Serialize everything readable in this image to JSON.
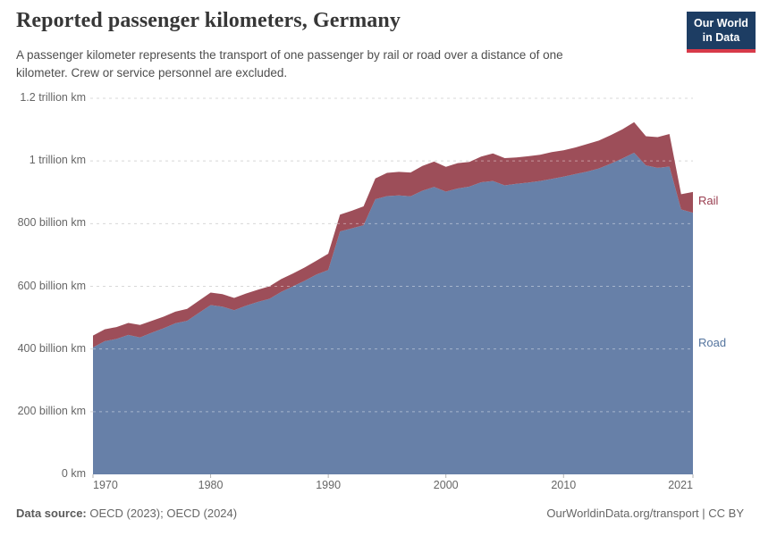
{
  "header": {
    "title": "Reported passenger kilometers, Germany",
    "subtitle_line1": "A passenger kilometer represents the transport of one passenger by rail or road over a distance of one",
    "subtitle_line2": "kilometer. Crew or service personnel are excluded."
  },
  "logo": {
    "line1": "Our World",
    "line2": "in Data",
    "bg_color": "#1d3d63",
    "accent_color": "#d73a49"
  },
  "footer": {
    "datasource_label": "Data source:",
    "datasource_value": " OECD (2023); OECD (2024)",
    "credit": "OurWorldinData.org/transport | CC BY"
  },
  "chart_data": {
    "type": "area",
    "stacked": true,
    "title": "Reported passenger kilometers, Germany",
    "ylabel": "",
    "xlabel": "",
    "units": "billion passenger-km",
    "grid": "horizontal dashed",
    "legend_position": "right edge labels",
    "ylim": [
      0,
      1200
    ],
    "x": [
      1970,
      1971,
      1972,
      1973,
      1974,
      1975,
      1976,
      1977,
      1978,
      1979,
      1980,
      1981,
      1982,
      1983,
      1984,
      1985,
      1986,
      1987,
      1988,
      1989,
      1990,
      1991,
      1992,
      1993,
      1994,
      1995,
      1996,
      1997,
      1998,
      1999,
      2000,
      2001,
      2002,
      2003,
      2004,
      2005,
      2006,
      2007,
      2008,
      2009,
      2010,
      2011,
      2012,
      2013,
      2014,
      2015,
      2016,
      2017,
      2018,
      2019,
      2020,
      2021
    ],
    "series": [
      {
        "name": "Road",
        "color": "#6780a8",
        "label_color": "#54749e",
        "values": [
          405,
          425,
          432,
          445,
          437,
          452,
          466,
          482,
          490,
          515,
          540,
          535,
          524,
          538,
          550,
          560,
          582,
          600,
          618,
          638,
          652,
          775,
          785,
          795,
          878,
          888,
          890,
          887,
          905,
          917,
          902,
          912,
          918,
          932,
          936,
          922,
          927,
          931,
          936,
          943,
          950,
          958,
          966,
          976,
          991,
          1008,
          1026,
          986,
          978,
          982,
          845,
          835
        ]
      },
      {
        "name": "Rail",
        "color": "#9d4e59",
        "label_color": "#993d4f",
        "values": [
          38,
          38,
          38,
          38,
          40,
          38,
          37,
          37,
          38,
          39,
          40,
          40,
          39,
          39,
          39,
          40,
          41,
          41,
          42,
          44,
          52,
          54,
          56,
          60,
          66,
          74,
          75,
          76,
          79,
          81,
          79,
          81,
          79,
          82,
          88,
          87,
          84,
          84,
          84,
          85,
          84,
          85,
          88,
          89,
          91,
          93,
          98,
          93,
          98,
          104,
          49,
          66
        ]
      }
    ],
    "yticks": [
      {
        "value": 1200,
        "label": "1.2 trillion km"
      },
      {
        "value": 1000,
        "label": "1 trillion km"
      },
      {
        "value": 800,
        "label": "800 billion km"
      },
      {
        "value": 600,
        "label": "600 billion km"
      },
      {
        "value": 400,
        "label": "400 billion km"
      },
      {
        "value": 200,
        "label": "200 billion km"
      },
      {
        "value": 0,
        "label": "0 km"
      }
    ],
    "xticks": [
      {
        "value": 1970,
        "label": "1970"
      },
      {
        "value": 1980,
        "label": "1980"
      },
      {
        "value": 1990,
        "label": "1990"
      },
      {
        "value": 2000,
        "label": "2000"
      },
      {
        "value": 2010,
        "label": "2010"
      },
      {
        "value": 2021,
        "label": "2021"
      }
    ]
  }
}
